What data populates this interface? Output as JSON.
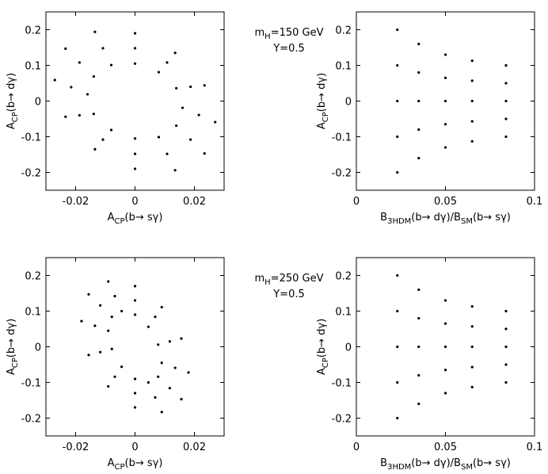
{
  "chart_data": [
    {
      "type": "scatter",
      "color": "#000000",
      "x": [
        0.027,
        0.0234,
        0.0135,
        0,
        -0.0135,
        -0.0234,
        -0.027,
        -0.0234,
        -0.0135,
        0,
        0.0135,
        0.0234,
        0.0215,
        0.0187,
        0.0108,
        0,
        -0.0108,
        -0.0187,
        -0.0215,
        -0.0187,
        -0.0108,
        0,
        0.0108,
        0.0187,
        0.016,
        0.0139,
        0.008,
        0,
        -0.008,
        -0.0139,
        -0.016,
        -0.0139,
        -0.008,
        0,
        0.008,
        0.0139
      ],
      "values": [
        -0.059,
        0.044,
        0.135,
        0.19,
        0.194,
        0.147,
        0.059,
        -0.044,
        -0.135,
        -0.19,
        -0.194,
        -0.147,
        -0.039,
        0.04,
        0.108,
        0.148,
        0.148,
        0.108,
        0.039,
        -0.04,
        -0.108,
        -0.148,
        -0.148,
        -0.108,
        -0.019,
        0.036,
        0.081,
        0.105,
        0.101,
        0.069,
        0.019,
        -0.036,
        -0.081,
        -0.105,
        -0.101,
        -0.069
      ],
      "xlim": [
        -0.03,
        0.03
      ],
      "xticks": [
        -0.02,
        0,
        0.02
      ],
      "ylim": [
        -0.25,
        0.25
      ],
      "yticks": [
        -0.2,
        -0.1,
        0,
        0.1,
        0.2
      ],
      "xlabel": [
        "A",
        "CP",
        "(b→ sγ)"
      ],
      "ylabel": [
        "A",
        "CP",
        "(b→ dγ)"
      ],
      "annotation": [
        "m",
        "H",
        "=150 GeV"
      ],
      "annotation_2": "Y=0.5"
    },
    {
      "type": "scatter",
      "color": "#000000",
      "x": [
        0.023,
        0.023,
        0.023,
        0.023,
        0.023,
        0.035,
        0.035,
        0.035,
        0.035,
        0.035,
        0.05,
        0.05,
        0.05,
        0.05,
        0.05,
        0.065,
        0.065,
        0.065,
        0.065,
        0.065,
        0.084,
        0.084,
        0.084,
        0.084,
        0.084
      ],
      "values": [
        0.2,
        0.1,
        0,
        -0.1,
        -0.2,
        0.16,
        0.08,
        0,
        -0.08,
        -0.16,
        0.13,
        0.065,
        0,
        -0.065,
        -0.13,
        0.113,
        0.057,
        0,
        -0.057,
        -0.113,
        0.1,
        0.05,
        0,
        -0.05,
        -0.1
      ],
      "xlim": [
        0,
        0.1
      ],
      "xticks": [
        0,
        0.05,
        0.1
      ],
      "ylim": [
        -0.25,
        0.25
      ],
      "yticks": [
        -0.2,
        -0.1,
        0,
        0.1,
        0.2
      ],
      "xlabel": [
        "B",
        "3HDM",
        "(b→ dγ)/B",
        "SM",
        "(b→ sγ)"
      ],
      "ylabel": [
        "A",
        "CP",
        "(b→ dγ)"
      ]
    },
    {
      "type": "scatter",
      "color": "#000000",
      "x": [
        0.018,
        0.0156,
        0.009,
        0,
        -0.009,
        -0.0156,
        -0.018,
        -0.0156,
        -0.009,
        0,
        0.009,
        0.0156,
        0.0135,
        0.0117,
        0.0068,
        0,
        -0.0068,
        -0.0117,
        -0.0135,
        -0.0117,
        -0.0068,
        0,
        0.0068,
        0.0117,
        0.009,
        0.0078,
        0.0045,
        0,
        -0.0045,
        -0.0078,
        -0.009,
        -0.0078,
        -0.0045,
        0,
        0.0045,
        0.0078
      ],
      "values": [
        -0.072,
        0.023,
        0.111,
        0.17,
        0.183,
        0.147,
        0.072,
        -0.023,
        -0.111,
        -0.17,
        -0.183,
        -0.147,
        -0.059,
        0.015,
        0.084,
        0.13,
        0.142,
        0.116,
        0.059,
        -0.015,
        -0.084,
        -0.13,
        -0.142,
        -0.116,
        -0.045,
        0.006,
        0.056,
        0.09,
        0.1,
        0.084,
        0.045,
        -0.006,
        -0.056,
        -0.09,
        -0.1,
        -0.084
      ],
      "xlim": [
        -0.03,
        0.03
      ],
      "xticks": [
        -0.02,
        0,
        0.02
      ],
      "ylim": [
        -0.25,
        0.25
      ],
      "yticks": [
        -0.2,
        -0.1,
        0,
        0.1,
        0.2
      ],
      "xlabel": [
        "A",
        "CP",
        "(b→ sγ)"
      ],
      "ylabel": [
        "A",
        "CP",
        "(b→ dγ)"
      ],
      "annotation": [
        "m",
        "H",
        "=250 GeV"
      ],
      "annotation_2": "Y=0.5"
    },
    {
      "type": "scatter",
      "color": "#000000",
      "x": [
        0.023,
        0.023,
        0.023,
        0.023,
        0.023,
        0.035,
        0.035,
        0.035,
        0.035,
        0.035,
        0.05,
        0.05,
        0.05,
        0.05,
        0.05,
        0.065,
        0.065,
        0.065,
        0.065,
        0.065,
        0.084,
        0.084,
        0.084,
        0.084,
        0.084
      ],
      "values": [
        0.2,
        0.1,
        0,
        -0.1,
        -0.2,
        0.16,
        0.08,
        0,
        -0.08,
        -0.16,
        0.13,
        0.065,
        0,
        -0.065,
        -0.13,
        0.113,
        0.057,
        0,
        -0.057,
        -0.113,
        0.1,
        0.05,
        0,
        -0.05,
        -0.1
      ],
      "xlim": [
        0,
        0.1
      ],
      "xticks": [
        0,
        0.05,
        0.1
      ],
      "ylim": [
        -0.25,
        0.25
      ],
      "yticks": [
        -0.2,
        -0.1,
        0,
        0.1,
        0.2
      ],
      "xlabel": [
        "B",
        "3HDM",
        "(b→ dγ)/B",
        "SM",
        "(b→ sγ)"
      ],
      "ylabel": [
        "A",
        "CP",
        "(b→ dγ)"
      ]
    }
  ]
}
